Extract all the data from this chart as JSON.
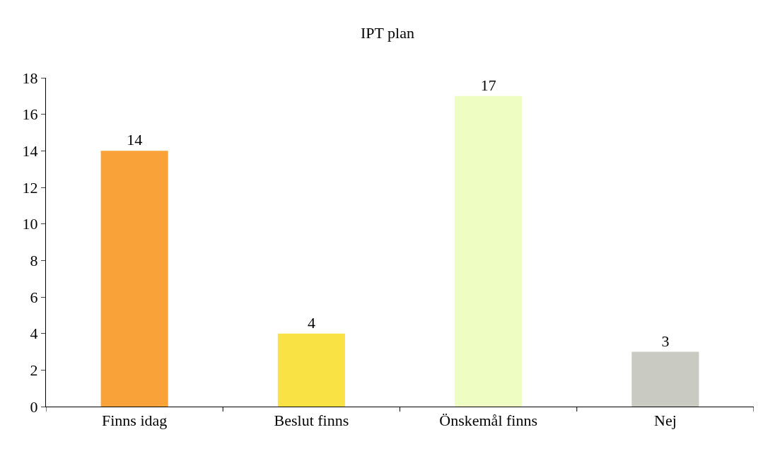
{
  "chart_data": {
    "type": "bar",
    "title": "IPT plan",
    "categories": [
      "Finns idag",
      "Beslut finns",
      "Önskemål finns",
      "Nej"
    ],
    "values": [
      14,
      4,
      17,
      3
    ],
    "colors": [
      "#f9a23a",
      "#f9e344",
      "#eefdc2",
      "#c9cbc3"
    ],
    "ylim": [
      0,
      18
    ],
    "yticks": [
      0,
      2,
      4,
      6,
      8,
      10,
      12,
      14,
      16,
      18
    ],
    "data_labels": true
  }
}
